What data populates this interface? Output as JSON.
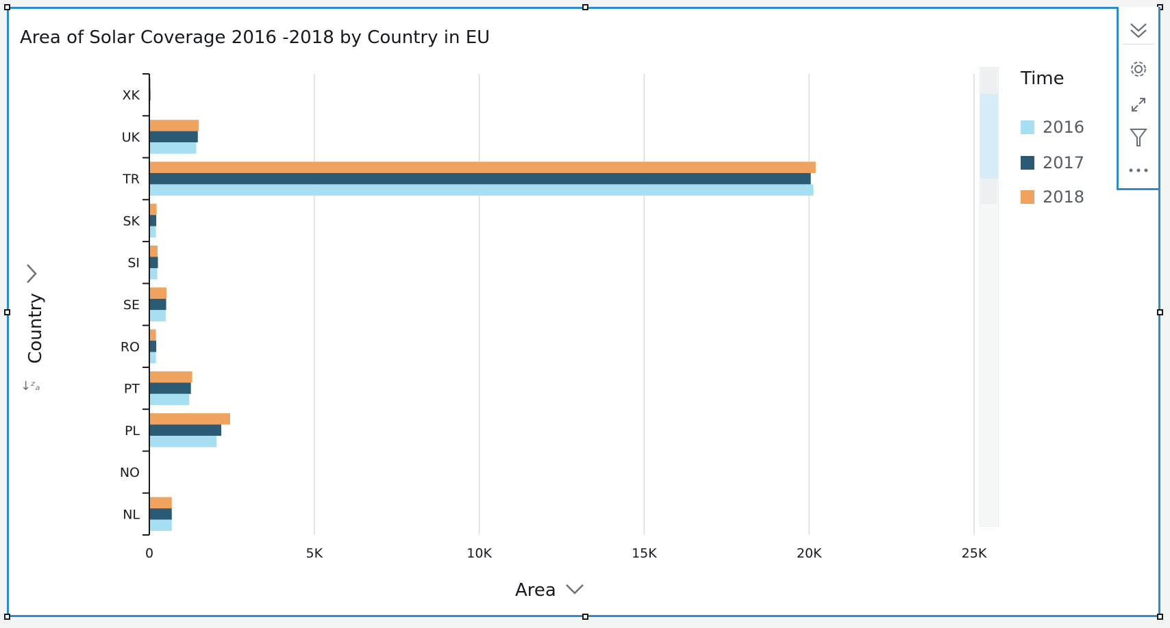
{
  "chart_data": {
    "type": "bar",
    "orientation": "horizontal",
    "title": "Area of Solar Coverage 2016 -2018 by Country in EU",
    "xlabel": "Area",
    "ylabel": "Country",
    "xlim": [
      0,
      25000
    ],
    "x_ticks": [
      0,
      5000,
      10000,
      15000,
      20000,
      25000
    ],
    "x_tick_labels": [
      "0",
      "5K",
      "10K",
      "15K",
      "20K",
      "25K"
    ],
    "grid": true,
    "legend_title": "Time",
    "legend_position": "right",
    "categories": [
      "XK",
      "UK",
      "TR",
      "SK",
      "SI",
      "SE",
      "RO",
      "PT",
      "PL",
      "NO",
      "NL"
    ],
    "series": [
      {
        "name": "2018",
        "color": "#f0a35e",
        "values": [
          40,
          1500,
          20200,
          220,
          250,
          520,
          200,
          1300,
          2450,
          0,
          680
        ]
      },
      {
        "name": "2017",
        "color": "#2b5a75",
        "values": [
          35,
          1470,
          20050,
          210,
          260,
          510,
          210,
          1260,
          2180,
          0,
          680
        ]
      },
      {
        "name": "2016",
        "color": "#a6def2",
        "values": [
          30,
          1420,
          20130,
          200,
          240,
          500,
          200,
          1210,
          2040,
          0,
          680
        ]
      }
    ],
    "legend_order": [
      "2016",
      "2017",
      "2018"
    ]
  },
  "axis_colors": {
    "grid": "#dcdcdc",
    "axis": "#16191f",
    "label": "#16191f"
  },
  "icons": {
    "collapse": "double-chevron-down-icon",
    "settings": "gear-icon",
    "expand": "expand-arrows-icon",
    "filter": "filter-icon",
    "more": "more-options-icon",
    "field_well": "chevron-right-icon",
    "sort": "sort-az-icon",
    "x_dropdown": "chevron-down-icon"
  },
  "sort_indicator": "↓ᶻₐ"
}
